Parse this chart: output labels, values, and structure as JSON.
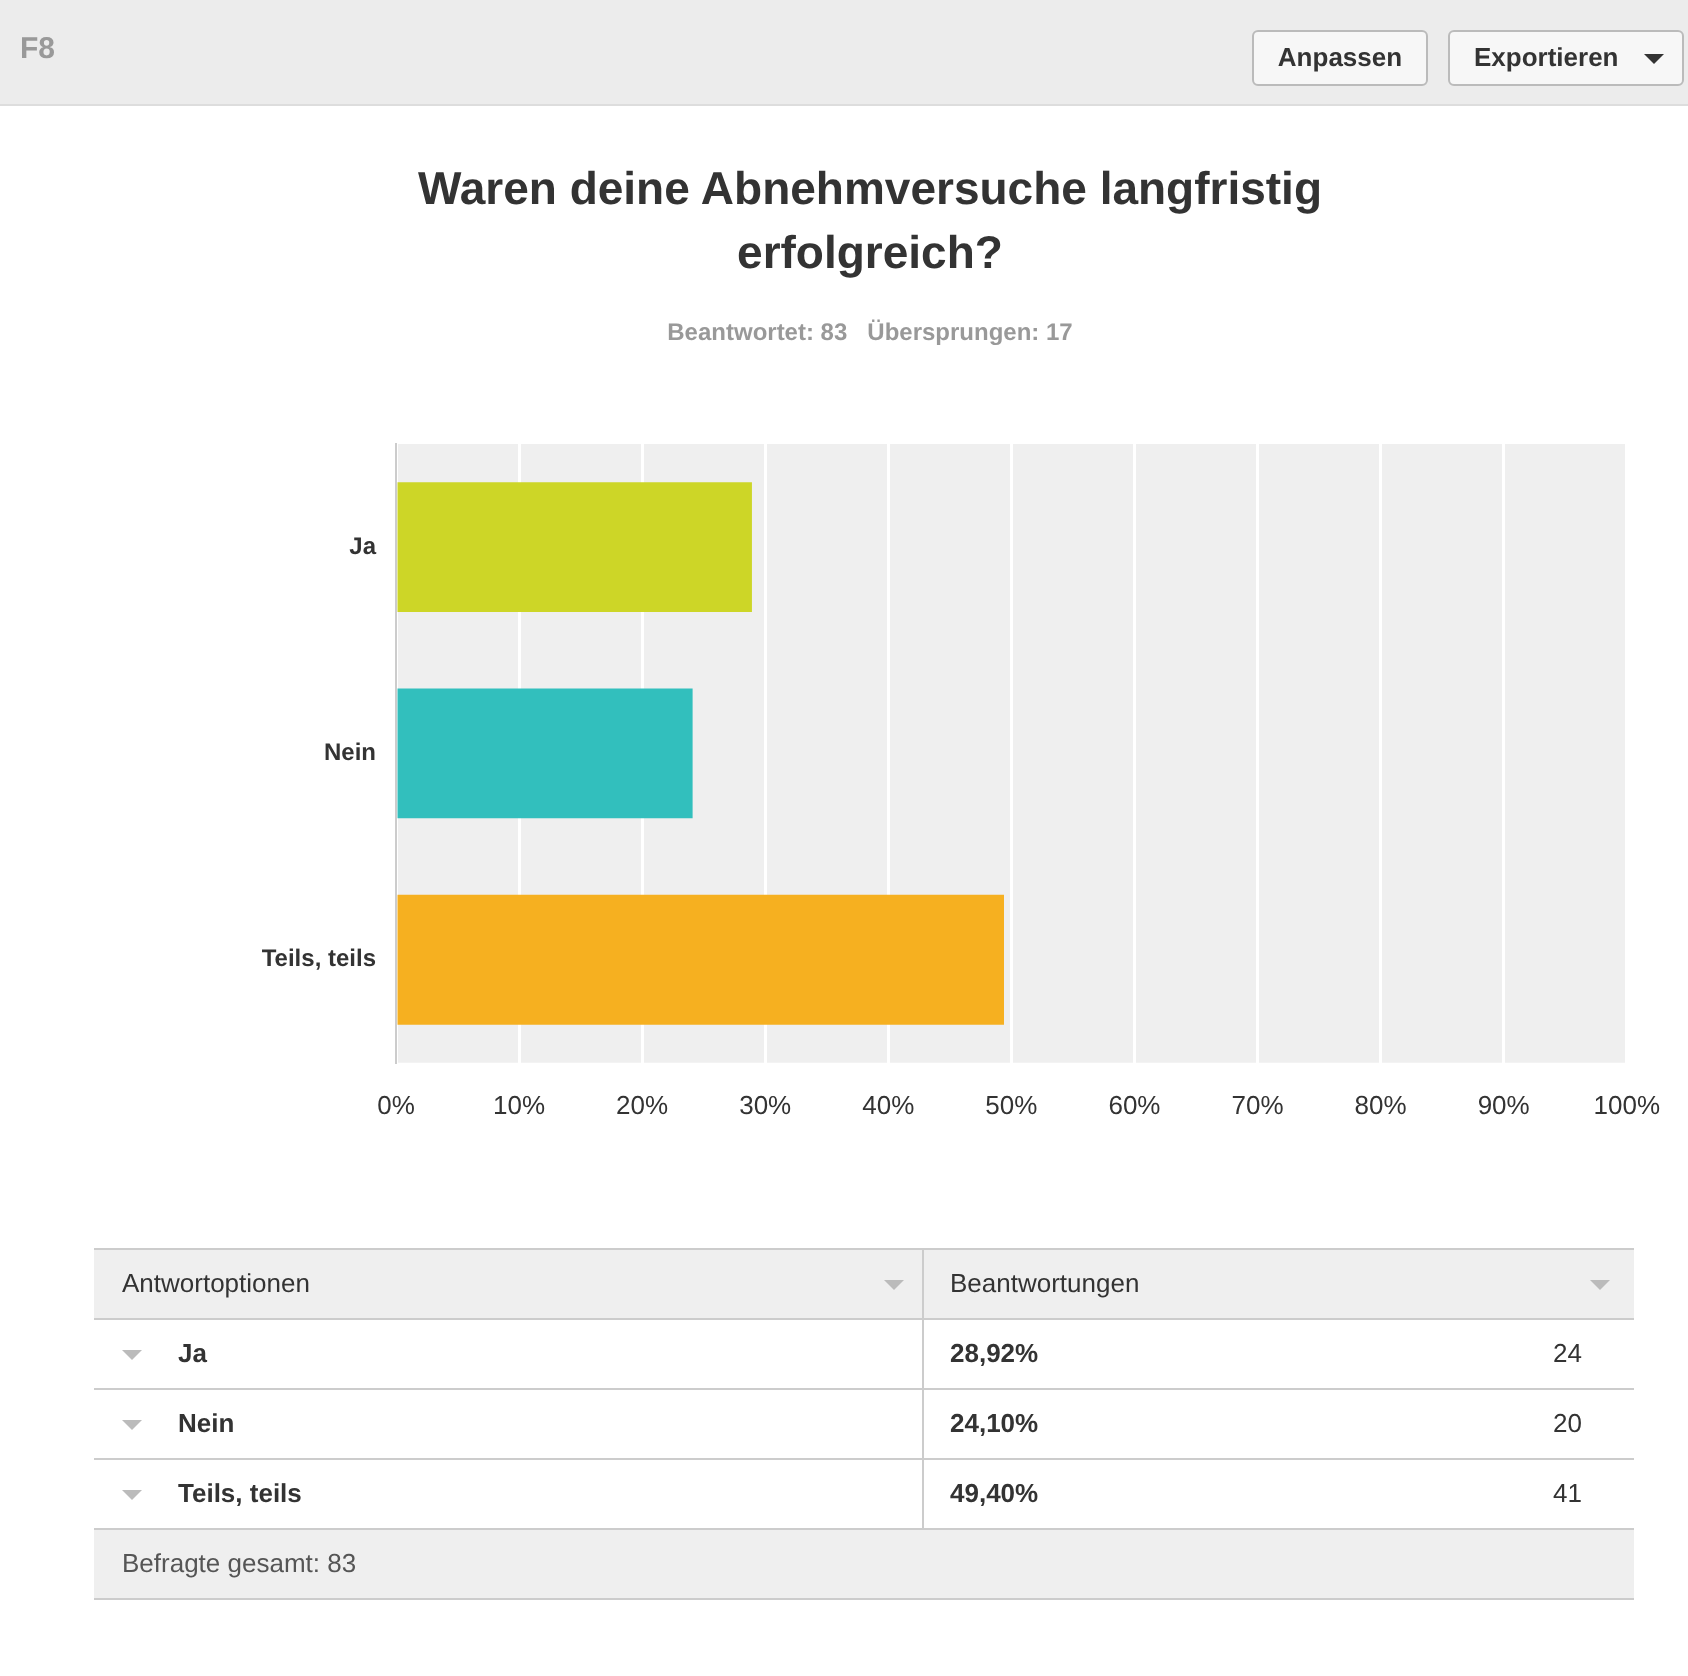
{
  "chart_data": {
    "type": "bar",
    "orientation": "horizontal",
    "title": "Waren deine Abnehmversuche langfristig erfolgreich?",
    "subtitle": "Beantwortet: 83   Übersprungen: 17",
    "categories": [
      "Ja",
      "Nein",
      "Teils, teils"
    ],
    "values": [
      28.92,
      24.1,
      49.4
    ],
    "colors": [
      "#cdd627",
      "#32bfbd",
      "#f6b020"
    ],
    "xlim": [
      0,
      100
    ],
    "xticks": [
      {
        "value": 0,
        "label": "0%"
      },
      {
        "value": 10,
        "label": "10%"
      },
      {
        "value": 20,
        "label": "20%"
      },
      {
        "value": 30,
        "label": "30%"
      },
      {
        "value": 40,
        "label": "40%"
      },
      {
        "value": 50,
        "label": "50%"
      },
      {
        "value": 60,
        "label": "60%"
      },
      {
        "value": 70,
        "label": "70%"
      },
      {
        "value": 80,
        "label": "80%"
      },
      {
        "value": 90,
        "label": "90%"
      },
      {
        "value": 100,
        "label": "100%"
      }
    ],
    "grid": "x",
    "legend": false,
    "annotations": [
      "F8",
      "Anpassen",
      "Exportieren",
      "Antwortoptionen",
      "Beantwortungen",
      "28,92%",
      "24,10%",
      "49,40%",
      "24",
      "20",
      "41",
      "Befragte gesamt: 83"
    ]
  }
}
